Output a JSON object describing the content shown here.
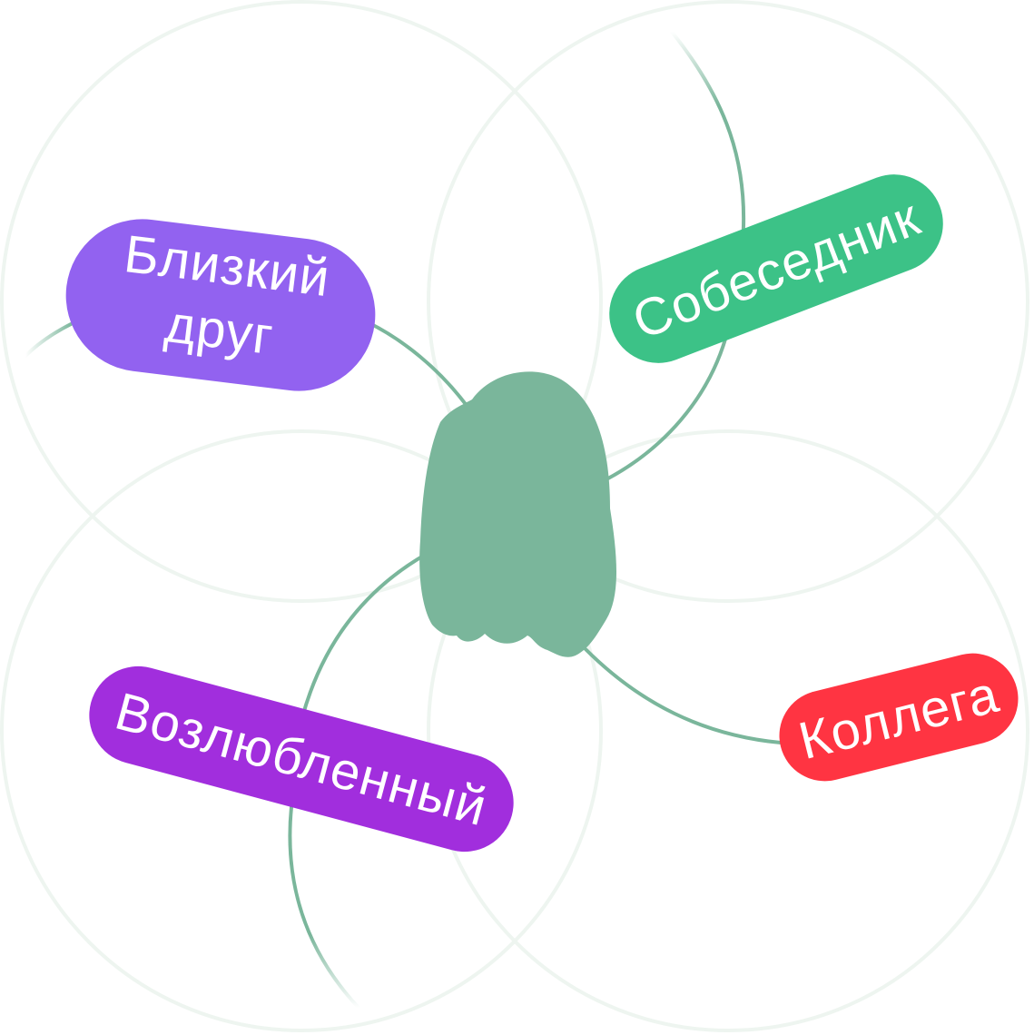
{
  "roles": {
    "close_friend": {
      "line1": "Близкий",
      "line2": "друг",
      "color": "#9262F0"
    },
    "interlocutor": {
      "label": "Собеседник",
      "color": "#3CC287"
    },
    "colleague": {
      "label": "Коллега",
      "color": "#FF3442"
    },
    "beloved": {
      "label": "Возлюбленный",
      "color": "#A12EDD"
    }
  },
  "center": {
    "shape": "ghost-blob",
    "color": "#7AB69B"
  },
  "connector_color": "#7AB69B",
  "ring_color": "#EEF5F0"
}
